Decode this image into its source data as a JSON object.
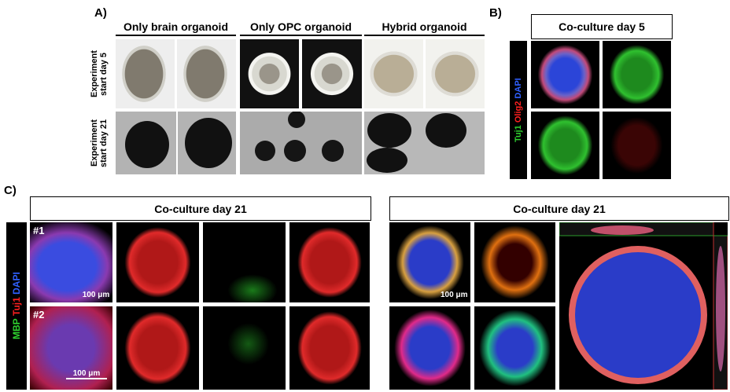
{
  "panel_a": {
    "label": "A)",
    "columns": [
      "Only brain organoid",
      "Only OPC organoid",
      "Hybrid organoid"
    ],
    "rows": [
      {
        "line1": "Experiment",
        "line2": "start day 5"
      },
      {
        "line1": "Experiment",
        "line2": "start day 21"
      }
    ]
  },
  "panel_b": {
    "label": "B)",
    "title": "Co-culture day 5",
    "stain": [
      "Tuj1",
      "Olig2",
      "DAPI"
    ]
  },
  "panel_c": {
    "label": "C)",
    "left_title": "Co-culture day 21",
    "right_title": "Co-culture day 21",
    "samples": [
      "#1",
      "#2"
    ],
    "scale_bars": [
      "100 μm",
      "100 μm",
      "100 μm"
    ],
    "stain": [
      "MBP",
      "Tuj1",
      "DAPI"
    ]
  }
}
